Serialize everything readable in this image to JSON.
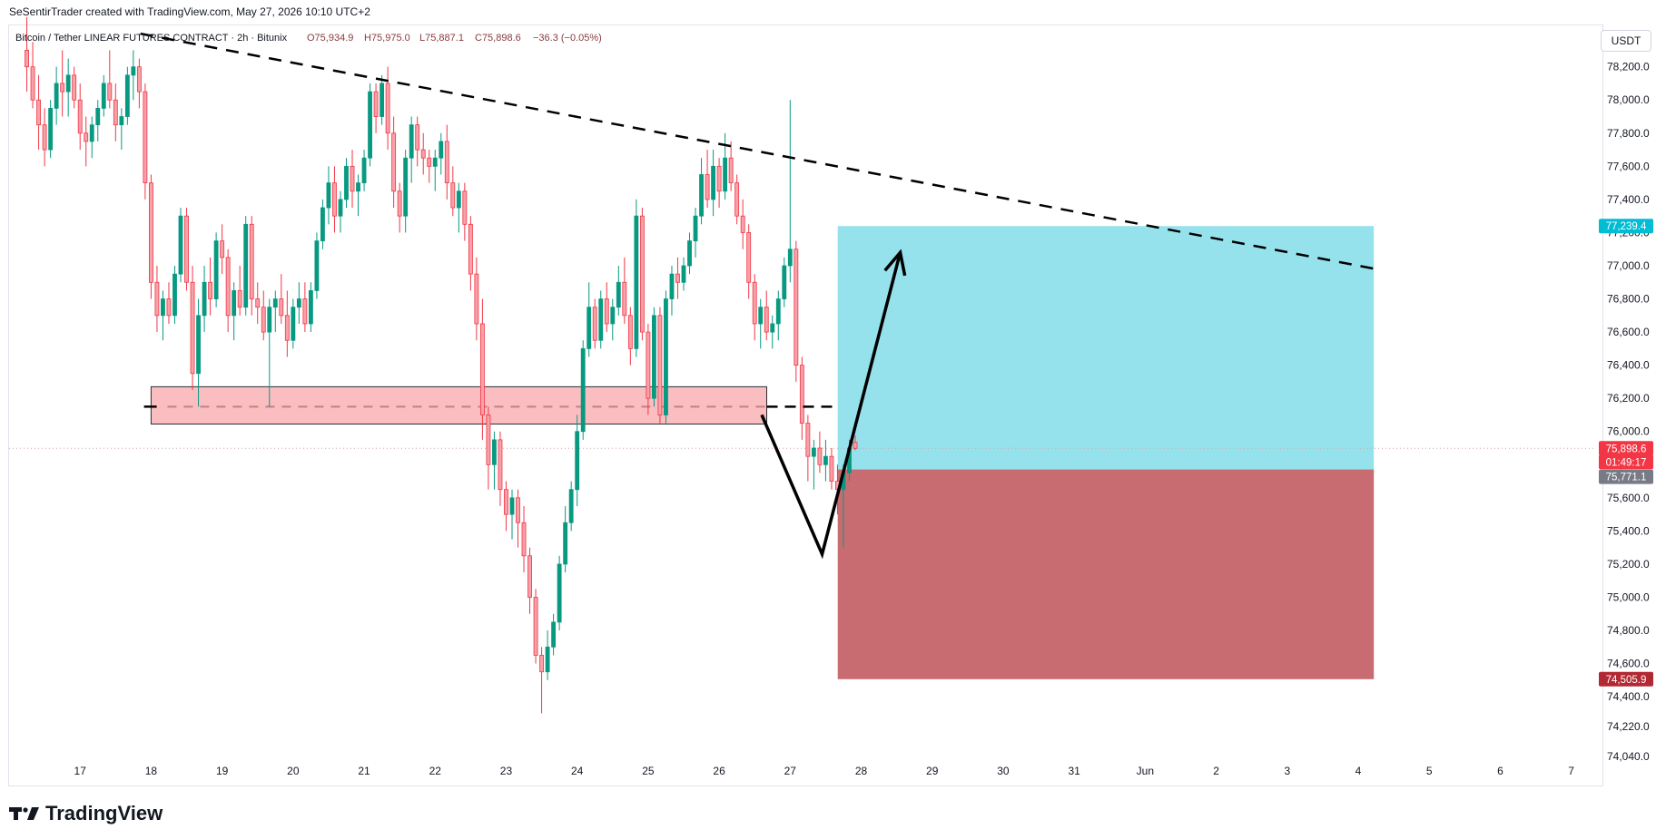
{
  "header": {
    "attribution": "SeSentirTrader created with TradingView.com, May 27, 2026 10:10 UTC+2"
  },
  "brand": {
    "name": "TradingView"
  },
  "currency_badge": "USDT",
  "colors": {
    "bull": "#089981",
    "bear": "#f23645",
    "target_zone": "#96e2ec",
    "stop_zone": "#c96c72",
    "support_zone": "#f9b7ba",
    "last_price_tag": "#f23645",
    "target_tag": "#00bcd4",
    "entry_tag": "#787b86",
    "stop_tag": "#b22833"
  },
  "chart_data": {
    "type": "candlestick",
    "title": "Bitcoin / Tether LINEAR FUTURES CONTRACT · 2h · Bitunix",
    "ohlc_legend": {
      "o": "O75,934.9",
      "h": "H75,975.0",
      "l": "L75,887.1",
      "c": "C75,898.6",
      "change": "−36.3 (−0.05%)"
    },
    "y_ticks": [
      78200,
      78000,
      77800,
      77600,
      77400,
      77200,
      77000,
      76800,
      76600,
      76400,
      76200,
      76000,
      75800,
      75600,
      75400,
      75200,
      75000,
      74800,
      74600,
      74400,
      74220,
      74040
    ],
    "y_tick_labels": [
      "78,200.0",
      "78,000.0",
      "77,800.0",
      "77,600.0",
      "77,400.0",
      "77,200.0",
      "77,000.0",
      "76,800.0",
      "76,600.0",
      "76,400.0",
      "76,200.0",
      "76,000.0",
      "75,800.0",
      "75,600.0",
      "75,400.0",
      "75,200.0",
      "75,000.0",
      "74,800.0",
      "74,600.0",
      "74,400.0",
      "74,220.0",
      "74,040.0"
    ],
    "x_ticks": [
      "17",
      "18",
      "19",
      "20",
      "21",
      "22",
      "23",
      "24",
      "25",
      "26",
      "27",
      "28",
      "29",
      "30",
      "31",
      "Jun",
      "2",
      "3",
      "4",
      "5",
      "6",
      "7"
    ],
    "x_tick_days": [
      17,
      18,
      19,
      20,
      21,
      22,
      23,
      24,
      25,
      26,
      27,
      28,
      29,
      30,
      31,
      32,
      33,
      34,
      35,
      36,
      37,
      38
    ],
    "ylim": [
      73870,
      78450
    ],
    "xlim_days": [
      16.0,
      38.35
    ],
    "price_tags": {
      "target": "77,239.4",
      "last_price": "75,898.6",
      "countdown": "01:49:17",
      "entry": "75,771.1",
      "stop": "74,505.9"
    },
    "levels": {
      "target": 77239.4,
      "last": 75898.6,
      "entry": 75771.1,
      "stop": 74505.9
    },
    "position": {
      "start_day": 27.67,
      "end_day": 35.22,
      "entry": 75771.1,
      "target": 77239.4,
      "stop": 74505.9
    },
    "support_zone": {
      "start_day": 18.0,
      "end_day": 26.67,
      "top": 76270,
      "bottom": 76045,
      "mid": 76150
    },
    "support_line_ext": {
      "start_day": 17.9,
      "end_day": 27.67,
      "value": 76150
    },
    "trendline": [
      {
        "day": 17.85,
        "price": 78400
      },
      {
        "day": 35.25,
        "price": 76980
      }
    ],
    "projection": [
      {
        "day": 26.6,
        "price": 76100
      },
      {
        "day": 27.45,
        "price": 75260
      },
      {
        "day": 28.55,
        "price": 77080
      }
    ],
    "candle_start_day": 16.25,
    "candles_per_day": 12,
    "candles": [
      [
        78300,
        78500,
        78050,
        78200
      ],
      [
        78200,
        78350,
        77950,
        78000
      ],
      [
        78000,
        78150,
        77700,
        77850
      ],
      [
        77850,
        77950,
        77600,
        77700
      ],
      [
        77700,
        78000,
        77650,
        77950
      ],
      [
        77950,
        78200,
        77850,
        78100
      ],
      [
        78100,
        78300,
        77900,
        78050
      ],
      [
        78050,
        78250,
        77900,
        78150
      ],
      [
        78150,
        78200,
        77950,
        78000
      ],
      [
        78000,
        78100,
        77700,
        77800
      ],
      [
        77800,
        77900,
        77600,
        77750
      ],
      [
        77750,
        77900,
        77650,
        77850
      ],
      [
        77850,
        78000,
        77750,
        77950
      ],
      [
        77950,
        78150,
        77900,
        78100
      ],
      [
        78100,
        78300,
        77950,
        78000
      ],
      [
        78000,
        78100,
        77750,
        77850
      ],
      [
        77850,
        77950,
        77700,
        77900
      ],
      [
        77900,
        78200,
        77850,
        78150
      ],
      [
        78150,
        78300,
        78000,
        78200
      ],
      [
        78200,
        78250,
        77950,
        78050
      ],
      [
        78050,
        78100,
        77400,
        77500
      ],
      [
        77500,
        77550,
        76800,
        76900
      ],
      [
        76900,
        77000,
        76600,
        76700
      ],
      [
        76700,
        76850,
        76550,
        76800
      ],
      [
        76800,
        76900,
        76650,
        76700
      ],
      [
        76700,
        77000,
        76650,
        76950
      ],
      [
        76950,
        77350,
        76900,
        77300
      ],
      [
        77300,
        77350,
        76850,
        76900
      ],
      [
        76900,
        77000,
        76250,
        76350
      ],
      [
        76350,
        76800,
        76150,
        76700
      ],
      [
        76700,
        77000,
        76600,
        76900
      ],
      [
        76900,
        77050,
        76700,
        76800
      ],
      [
        76800,
        77200,
        76750,
        77150
      ],
      [
        77150,
        77250,
        76950,
        77050
      ],
      [
        77050,
        77100,
        76600,
        76700
      ],
      [
        76700,
        76900,
        76550,
        76850
      ],
      [
        76850,
        77000,
        76700,
        76750
      ],
      [
        76750,
        77300,
        76700,
        77250
      ],
      [
        77250,
        77300,
        76700,
        76800
      ],
      [
        76800,
        76900,
        76650,
        76750
      ],
      [
        76750,
        76850,
        76550,
        76600
      ],
      [
        76600,
        76800,
        76150,
        76750
      ],
      [
        76750,
        76850,
        76600,
        76800
      ],
      [
        76800,
        76950,
        76650,
        76700
      ],
      [
        76700,
        76850,
        76450,
        76550
      ],
      [
        76550,
        76800,
        76500,
        76750
      ],
      [
        76750,
        76900,
        76650,
        76800
      ],
      [
        76800,
        76900,
        76600,
        76650
      ],
      [
        76650,
        76900,
        76600,
        76850
      ],
      [
        76850,
        77200,
        76800,
        77150
      ],
      [
        77150,
        77400,
        77100,
        77350
      ],
      [
        77350,
        77600,
        77250,
        77500
      ],
      [
        77500,
        77600,
        77200,
        77300
      ],
      [
        77300,
        77450,
        77200,
        77400
      ],
      [
        77400,
        77650,
        77350,
        77600
      ],
      [
        77600,
        77700,
        77350,
        77450
      ],
      [
        77450,
        77550,
        77300,
        77500
      ],
      [
        77500,
        77700,
        77450,
        77650
      ],
      [
        77650,
        78100,
        77600,
        78050
      ],
      [
        78050,
        78100,
        77800,
        77900
      ],
      [
        77900,
        78150,
        77850,
        78100
      ],
      [
        78100,
        78200,
        77700,
        77800
      ],
      [
        77800,
        77900,
        77350,
        77450
      ],
      [
        77450,
        77500,
        77200,
        77300
      ],
      [
        77300,
        77700,
        77200,
        77650
      ],
      [
        77650,
        77900,
        77500,
        77850
      ],
      [
        77850,
        77900,
        77600,
        77700
      ],
      [
        77700,
        77800,
        77550,
        77650
      ],
      [
        77650,
        77700,
        77500,
        77600
      ],
      [
        77600,
        77700,
        77450,
        77650
      ],
      [
        77650,
        77800,
        77550,
        77750
      ],
      [
        77750,
        77850,
        77400,
        77500
      ],
      [
        77500,
        77600,
        77300,
        77350
      ],
      [
        77350,
        77500,
        77200,
        77450
      ],
      [
        77450,
        77500,
        77150,
        77250
      ],
      [
        77250,
        77300,
        76850,
        76950
      ],
      [
        76950,
        77050,
        76550,
        76650
      ],
      [
        76650,
        76800,
        75950,
        76100
      ],
      [
        76100,
        76150,
        75650,
        75800
      ],
      [
        75800,
        76000,
        75650,
        75950
      ],
      [
        75950,
        76000,
        75550,
        75650
      ],
      [
        75650,
        75700,
        75400,
        75500
      ],
      [
        75500,
        75650,
        75350,
        75600
      ],
      [
        75600,
        75650,
        75300,
        75450
      ],
      [
        75450,
        75550,
        75150,
        75250
      ],
      [
        75250,
        75300,
        74900,
        75000
      ],
      [
        75000,
        75050,
        74600,
        74650
      ],
      [
        74650,
        74700,
        74300,
        74550
      ],
      [
        74550,
        74800,
        74500,
        74700
      ],
      [
        74700,
        74900,
        74650,
        74850
      ],
      [
        74850,
        75250,
        74800,
        75200
      ],
      [
        75200,
        75550,
        75150,
        75450
      ],
      [
        75450,
        75700,
        75400,
        75650
      ],
      [
        75650,
        76100,
        75550,
        76000
      ],
      [
        76000,
        76550,
        75950,
        76500
      ],
      [
        76500,
        76900,
        76450,
        76750
      ],
      [
        76750,
        76800,
        76500,
        76550
      ],
      [
        76550,
        76850,
        76500,
        76800
      ],
      [
        76800,
        76900,
        76600,
        76650
      ],
      [
        76650,
        76800,
        76550,
        76750
      ],
      [
        76750,
        77000,
        76700,
        76900
      ],
      [
        76900,
        77050,
        76650,
        76700
      ],
      [
        76700,
        76750,
        76400,
        76500
      ],
      [
        76500,
        77400,
        76450,
        77300
      ],
      [
        77300,
        77350,
        76550,
        76600
      ],
      [
        76600,
        76650,
        76100,
        76200
      ],
      [
        76200,
        76750,
        76150,
        76700
      ],
      [
        76700,
        76750,
        76050,
        76100
      ],
      [
        76100,
        76850,
        76050,
        76800
      ],
      [
        76800,
        77000,
        76700,
        76950
      ],
      [
        76950,
        77050,
        76800,
        76900
      ],
      [
        76900,
        77050,
        76850,
        77000
      ],
      [
        77000,
        77200,
        76950,
        77150
      ],
      [
        77150,
        77350,
        77050,
        77300
      ],
      [
        77300,
        77650,
        77250,
        77550
      ],
      [
        77550,
        77700,
        77350,
        77400
      ],
      [
        77400,
        77700,
        77300,
        77600
      ],
      [
        77600,
        77650,
        77350,
        77450
      ],
      [
        77450,
        77800,
        77400,
        77650
      ],
      [
        77650,
        77750,
        77450,
        77500
      ],
      [
        77500,
        77550,
        77250,
        77300
      ],
      [
        77300,
        77400,
        77100,
        77200
      ],
      [
        77200,
        77250,
        76800,
        76900
      ],
      [
        76900,
        76950,
        76550,
        76650
      ],
      [
        76650,
        76800,
        76500,
        76750
      ],
      [
        76750,
        76850,
        76550,
        76600
      ],
      [
        76600,
        76700,
        76500,
        76650
      ],
      [
        76650,
        76850,
        76550,
        76800
      ],
      [
        76800,
        77050,
        76750,
        77000
      ],
      [
        77000,
        78000,
        76900,
        77100
      ],
      [
        77100,
        77150,
        76300,
        76400
      ],
      [
        76400,
        76450,
        75950,
        76050
      ],
      [
        76050,
        76100,
        75700,
        75850
      ],
      [
        75850,
        75950,
        75650,
        75900
      ],
      [
        75900,
        76000,
        75750,
        75800
      ],
      [
        75800,
        75950,
        75700,
        75850
      ],
      [
        75850,
        75900,
        75650,
        75700
      ],
      [
        75700,
        75800,
        75500,
        75650
      ],
      [
        75650,
        75800,
        75300,
        75750
      ],
      [
        75750,
        75950,
        75700,
        75900
      ],
      [
        75934.9,
        75975,
        75887.1,
        75898.6
      ]
    ]
  }
}
